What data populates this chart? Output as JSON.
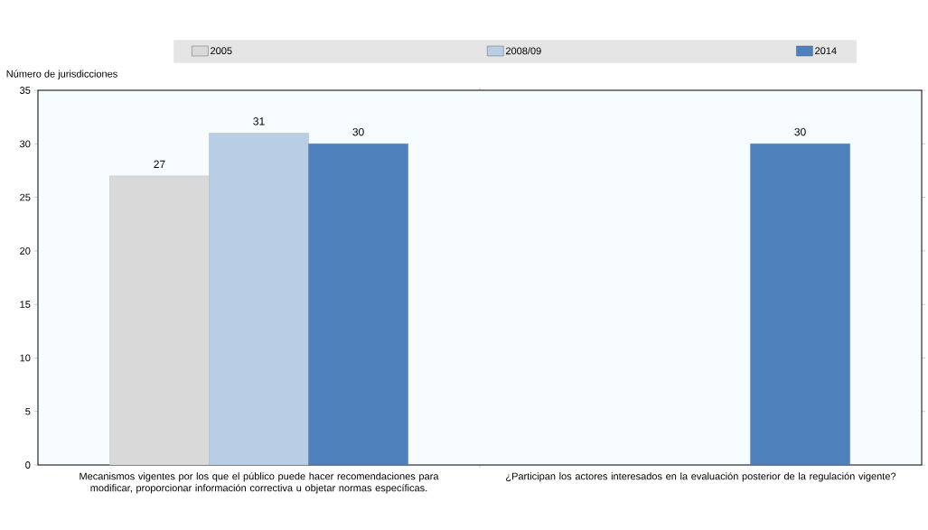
{
  "chart_data": {
    "type": "bar",
    "ylabel": "Número de jurisdicciones",
    "categories": [
      "Mecanismos vigentes por los que el público puede hacer recomendaciones para modificar, proporcionar información correctiva u objetar normas específicas.",
      "¿Participan los actores interesados en la evaluación posterior de la regulación vigente?"
    ],
    "series": [
      {
        "name": "2005",
        "color": "#d9d9d9",
        "values": [
          27,
          null
        ]
      },
      {
        "name": "2008/09",
        "color": "#b9cde5",
        "values": [
          31,
          null
        ]
      },
      {
        "name": "2014",
        "color": "#4f81bd",
        "values": [
          30,
          30
        ]
      }
    ],
    "ylim": [
      0,
      35
    ],
    "yticks": [
      0,
      5,
      10,
      15,
      20,
      25,
      30,
      35
    ],
    "data_labels": true,
    "legend": "top",
    "grid": false
  }
}
